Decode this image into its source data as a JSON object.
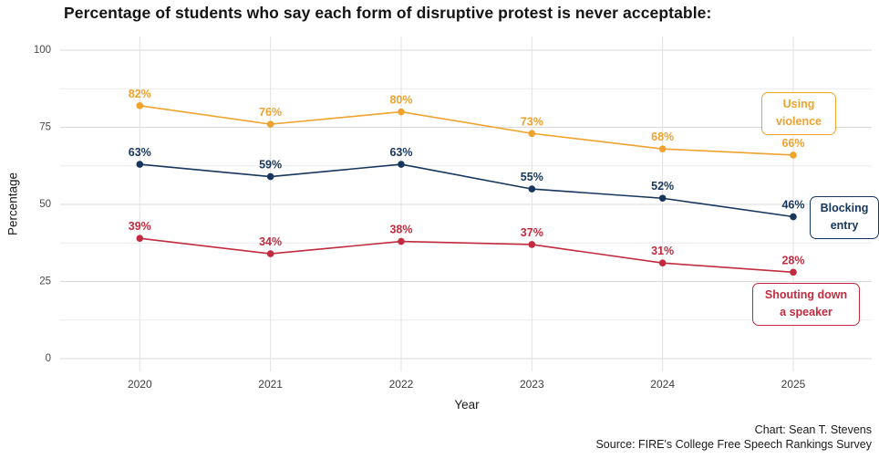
{
  "title": "Percentage of students who say each form of disruptive protest is never acceptable:",
  "chart_data": {
    "type": "line",
    "x": [
      "2020",
      "2021",
      "2022",
      "2023",
      "2024",
      "2025"
    ],
    "series": [
      {
        "name": "Using violence",
        "color": "#F0A22E",
        "values": [
          82,
          76,
          80,
          73,
          68,
          66
        ]
      },
      {
        "name": "Blocking entry",
        "color": "#16365C",
        "values": [
          63,
          59,
          63,
          55,
          52,
          46
        ]
      },
      {
        "name": "Shouting down a speaker",
        "color": "#C22B3F",
        "values": [
          39,
          34,
          38,
          37,
          31,
          28
        ]
      }
    ],
    "xlabel": "Year",
    "ylabel": "Percentage",
    "ylim": [
      0,
      100
    ],
    "yticks": [
      0,
      25,
      50,
      75,
      100
    ],
    "minor_yticks": [
      12.5,
      37.5,
      62.5,
      87.5
    ],
    "grid": "major-and-minor-horizontal-plus-vertical-per-year",
    "legend_position": "inline-boxes-right",
    "data_label_format": "{value}%"
  },
  "credits": {
    "chart": "Chart: Sean T. Stevens",
    "source": "Source: FIRE's College Free Speech Rankings Survey"
  },
  "colors": {
    "background": "#ffffff",
    "grid_major": "#dadada",
    "grid_minor": "#ececec",
    "grid_vertical": "#e2e2e2",
    "title_text": "#141414",
    "tick_text": "#4a4a4a"
  }
}
